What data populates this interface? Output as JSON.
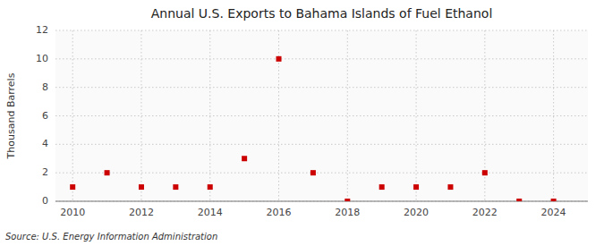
{
  "chart_data": {
    "type": "scatter",
    "title": "Annual U.S. Exports to Bahama Islands of Fuel Ethanol",
    "ylabel": "Thousand Barrels",
    "source": "Source: U.S. Energy Information Administration",
    "x": [
      2010,
      2011,
      2012,
      2013,
      2014,
      2015,
      2016,
      2017,
      2018,
      2019,
      2020,
      2021,
      2022,
      2023,
      2024
    ],
    "values": [
      1,
      2,
      1,
      1,
      1,
      3,
      10,
      2,
      0,
      1,
      1,
      1,
      2,
      0,
      0
    ],
    "color": "#cc0000",
    "marker": "square",
    "xlim": [
      2009.5,
      2025
    ],
    "ylim": [
      0,
      12
    ],
    "xticks": [
      2010,
      2012,
      2014,
      2016,
      2018,
      2020,
      2022,
      2024
    ],
    "yticks": [
      0,
      2,
      4,
      6,
      8,
      10,
      12
    ],
    "grid": true
  }
}
